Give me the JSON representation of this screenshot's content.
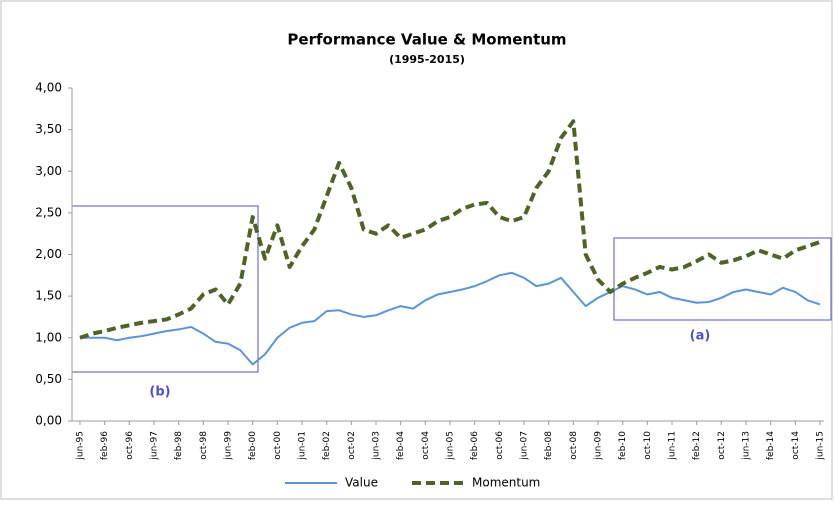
{
  "chart_data": {
    "type": "line",
    "title": "Performance Value & Momentum",
    "subtitle": "(1995-2015)",
    "annotations": [
      "(a)",
      "(b)"
    ],
    "categories": [
      "jun-95",
      null,
      "feb-96",
      null,
      "oct-96",
      null,
      "jun-97",
      null,
      "feb-98",
      null,
      "oct-98",
      null,
      "jun-99",
      null,
      "feb-00",
      null,
      "oct-00",
      null,
      "jun-01",
      null,
      "feb-02",
      null,
      "oct-02",
      null,
      "jun-03",
      null,
      "feb-04",
      null,
      "oct-04",
      null,
      "jun-05",
      null,
      "feb-06",
      null,
      "oct-06",
      null,
      "jun-07",
      null,
      "feb-08",
      null,
      "oct-08",
      null,
      "jun-09",
      null,
      "feb-10",
      null,
      "oct-10",
      null,
      "jun-11",
      null,
      "feb-12",
      null,
      "oct-12",
      null,
      "jun-13",
      null,
      "feb-14",
      null,
      "oct-14",
      null,
      "jun-15"
    ],
    "series": [
      {
        "name": "Value",
        "color": "#5b95d6",
        "dashed": false,
        "values": [
          1.0,
          1.0,
          1.0,
          0.97,
          1.0,
          1.02,
          1.05,
          1.08,
          1.1,
          1.13,
          1.05,
          0.95,
          0.93,
          0.85,
          0.68,
          0.8,
          1.0,
          1.12,
          1.18,
          1.2,
          1.32,
          1.33,
          1.28,
          1.25,
          1.27,
          1.33,
          1.38,
          1.35,
          1.45,
          1.52,
          1.55,
          1.58,
          1.62,
          1.68,
          1.75,
          1.78,
          1.72,
          1.62,
          1.65,
          1.72,
          1.55,
          1.38,
          1.48,
          1.55,
          1.62,
          1.58,
          1.52,
          1.55,
          1.48,
          1.45,
          1.42,
          1.43,
          1.48,
          1.55,
          1.58,
          1.55,
          1.52,
          1.6,
          1.55,
          1.45,
          1.4
        ]
      },
      {
        "name": "Momentum",
        "color": "#4f6228",
        "dashed": true,
        "values": [
          1.0,
          1.05,
          1.08,
          1.12,
          1.15,
          1.18,
          1.2,
          1.22,
          1.28,
          1.35,
          1.52,
          1.58,
          1.4,
          1.65,
          2.45,
          1.95,
          2.35,
          1.85,
          2.1,
          2.3,
          2.7,
          3.1,
          2.8,
          2.3,
          2.25,
          2.35,
          2.2,
          2.25,
          2.3,
          2.4,
          2.45,
          2.55,
          2.6,
          2.62,
          2.45,
          2.4,
          2.45,
          2.8,
          3.0,
          3.4,
          3.6,
          2.0,
          1.7,
          1.55,
          1.65,
          1.72,
          1.78,
          1.85,
          1.82,
          1.85,
          1.92,
          2.0,
          1.9,
          1.93,
          1.98,
          2.05,
          2.0,
          1.95,
          2.05,
          2.1,
          2.15
        ]
      }
    ],
    "ylim": [
      0,
      4
    ],
    "yticks": [
      {
        "value": 0,
        "label": "0,00"
      },
      {
        "value": 0.5,
        "label": "0,50"
      },
      {
        "value": 1,
        "label": "1,00"
      },
      {
        "value": 1.5,
        "label": "1,50"
      },
      {
        "value": 2,
        "label": "2,00"
      },
      {
        "value": 2.5,
        "label": "2,50"
      },
      {
        "value": 3,
        "label": "3,00"
      },
      {
        "value": 3.5,
        "label": "3,50"
      },
      {
        "value": 4,
        "label": "4,00"
      }
    ],
    "grid": false,
    "legend": "bottom"
  }
}
